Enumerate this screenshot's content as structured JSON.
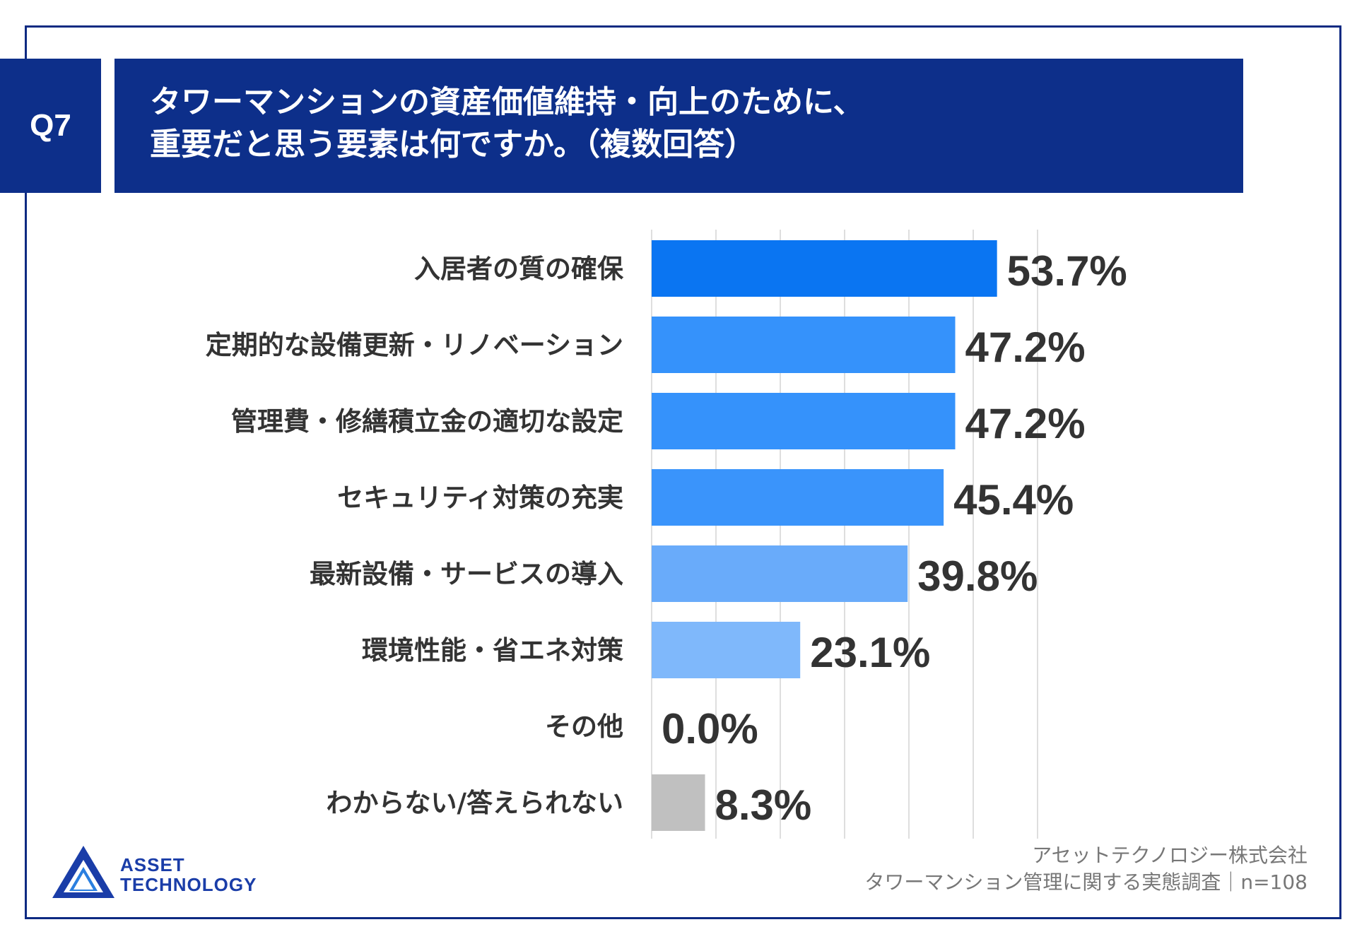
{
  "header": {
    "question_badge": "Q7",
    "title_line1": "タワーマンションの資産価値維持・向上のために、",
    "title_line2": "重要だと思う要素は何ですか。（複数回答）"
  },
  "colors": {
    "header_bg": "#0d2f8a",
    "bar_gray": "#c0c0c0"
  },
  "chart_data": {
    "type": "bar",
    "orientation": "horizontal",
    "title": "タワーマンションの資産価値維持・向上のために、重要だと思う要素は何ですか。（複数回答）",
    "categories": [
      "入居者の質の確保",
      "定期的な設備更新・リノベーション",
      "管理費・修繕積立金の適切な設定",
      "セキュリティ対策の充実",
      "最新設備・サービスの導入",
      "環境性能・省エネ対策",
      "その他",
      "わからない/答えられない"
    ],
    "values": [
      53.7,
      47.2,
      47.2,
      45.4,
      39.8,
      23.1,
      0.0,
      8.3
    ],
    "value_labels": [
      "53.7%",
      "47.2%",
      "47.2%",
      "45.4%",
      "39.8%",
      "23.1%",
      "0.0%",
      "8.3%"
    ],
    "bar_colors": [
      "#0a75f2",
      "#3592fb",
      "#3592fb",
      "#3a94fb",
      "#69abfa",
      "#7fb8fb",
      "#7fb8fb",
      "#c0c0c0"
    ],
    "xlim": [
      0,
      60
    ],
    "grid": true,
    "unit": "%"
  },
  "footer": {
    "company": "アセットテクノロジー株式会社",
    "survey": "タワーマンション管理に関する実態調査｜n=108"
  },
  "logo": {
    "line1": "ASSET",
    "line2": "TECHNOLOGY"
  }
}
